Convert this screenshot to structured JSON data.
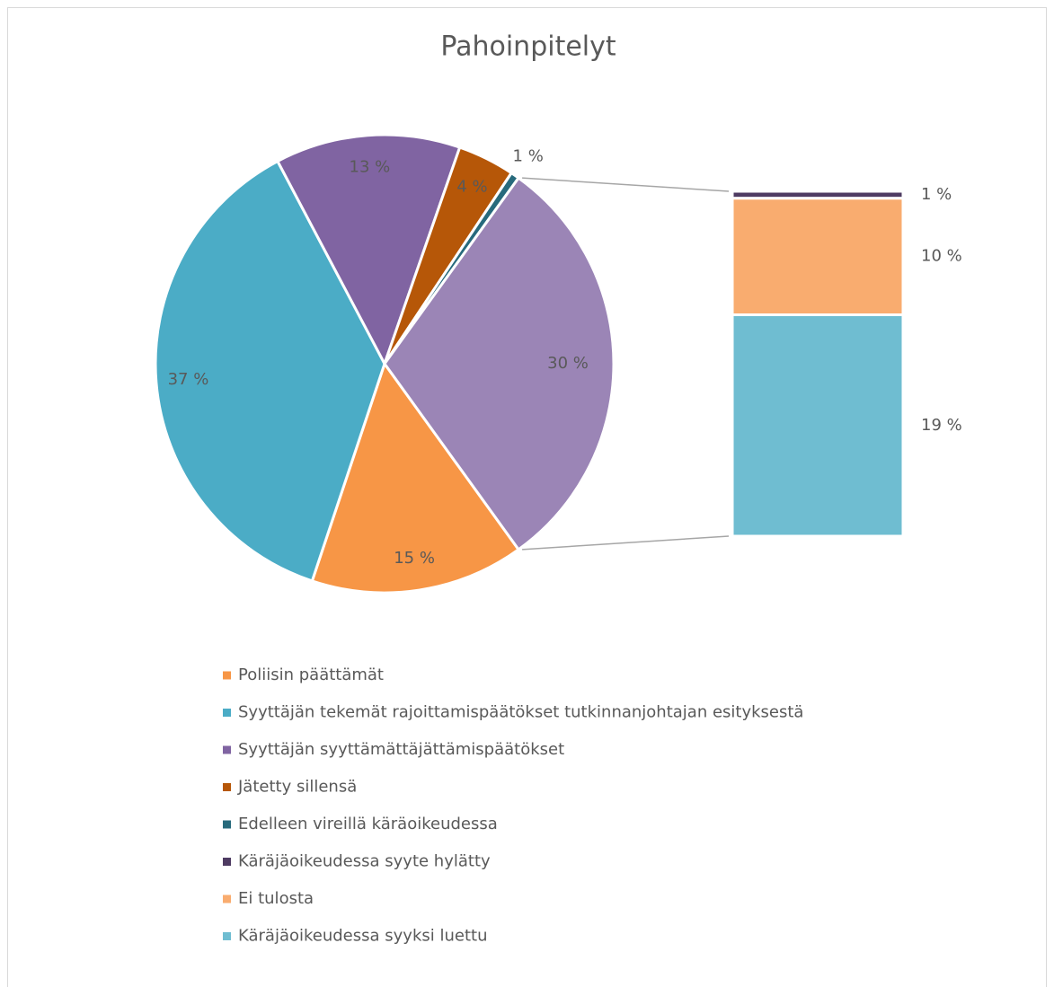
{
  "chart_data": {
    "type": "bar_of_pie",
    "title": "Pahoinpitelyt",
    "categories": [
      "Poliisin päättämät",
      "Syyttäjän tekemät rajoittamispäätökset tutkinnanjohtajan esityksestä",
      "Syyttäjän syyttämättäjättämispäätökset",
      "Jätetty sillensä",
      "Edelleen vireillä käräoikeudessa",
      "Käräjäoikeudessa syyte hylätty",
      "Ei tulosta",
      "Käräjäoikeudessa syyksi luettu"
    ],
    "values": [
      15,
      37,
      13,
      4,
      0.6,
      0.6,
      10,
      19
    ],
    "value_labels": [
      "15 %",
      "37 %",
      "13 %",
      "4 %",
      "1 %",
      "1 %",
      "10 %",
      "19 %"
    ],
    "colors": [
      "#f79646",
      "#4bacc6",
      "#8064a2",
      "#b65708",
      "#276a7c",
      "#4e3b62",
      "#f9ac6f",
      "#6fbdd1"
    ],
    "pie_count": 5,
    "other": {
      "value": 30,
      "value_label": "30 %",
      "color": "#9b85b6"
    },
    "legend": "bottom"
  }
}
